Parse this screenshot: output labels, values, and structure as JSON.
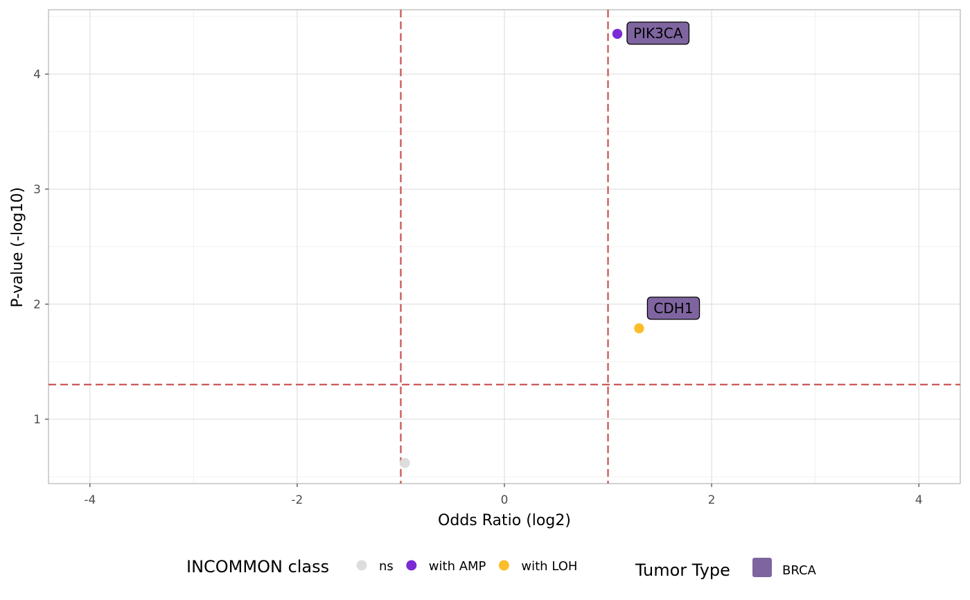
{
  "chart_data": {
    "type": "scatter",
    "title": "",
    "xlabel": "Odds Ratio (log2)",
    "ylabel": "P-value (-log10)",
    "xlim": [
      -4.4,
      4.4
    ],
    "ylim": [
      0.44,
      4.56
    ],
    "x_ticks": [
      -4,
      -2,
      0,
      2,
      4
    ],
    "x_tick_labels": [
      "-4",
      "-2",
      "0",
      "2",
      "4"
    ],
    "y_ticks": [
      1,
      2,
      3,
      4
    ],
    "y_tick_labels": [
      "1",
      "2",
      "3",
      "4"
    ],
    "grid": true,
    "reference_lines": {
      "vertical_x": [
        -1,
        1
      ],
      "horizontal_y": [
        1.30103
      ],
      "color": "#CD5C5C",
      "style": "dashed"
    },
    "points": [
      {
        "label": "",
        "x": -0.96,
        "y": 0.62,
        "class": "ns"
      },
      {
        "label": "PIK3CA",
        "x": 1.09,
        "y": 4.35,
        "class": "with AMP"
      },
      {
        "label": "CDH1",
        "x": 1.3,
        "y": 1.79,
        "class": "with LOH"
      }
    ],
    "class_colors": {
      "ns": "#DDDDDD",
      "with AMP": "#7B2BD4",
      "with LOH": "#FBBD2A"
    },
    "label_fill": "#7F65A0",
    "legend": {
      "position": "bottom",
      "class_title": "INCOMMON class",
      "class_entries": [
        "ns",
        "with AMP",
        "with LOH"
      ],
      "tumor_title": "Tumor Type",
      "tumor_entries": [
        {
          "label": "BRCA",
          "color": "#7F65A0"
        }
      ]
    }
  }
}
